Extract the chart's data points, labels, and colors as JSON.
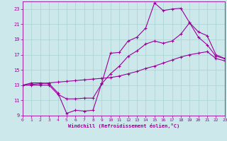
{
  "xlabel": "Windchill (Refroidissement éolien,°C)",
  "bg_color": "#cce8ea",
  "grid_color": "#aad0d4",
  "line_color": "#990099",
  "xlim": [
    0,
    23
  ],
  "ylim": [
    9,
    24
  ],
  "xticks": [
    0,
    1,
    2,
    3,
    4,
    5,
    6,
    7,
    8,
    9,
    10,
    11,
    12,
    13,
    14,
    15,
    16,
    17,
    18,
    19,
    20,
    21,
    22,
    23
  ],
  "yticks": [
    9,
    11,
    13,
    15,
    17,
    19,
    21,
    23
  ],
  "curve1_x": [
    0,
    1,
    2,
    3,
    4,
    5,
    6,
    7,
    8,
    9,
    10,
    11,
    12,
    13,
    14,
    15,
    16,
    17,
    18,
    19,
    20,
    21,
    22,
    23
  ],
  "curve1_y": [
    13.0,
    13.3,
    13.3,
    13.2,
    12.0,
    9.3,
    9.7,
    9.6,
    9.7,
    13.3,
    17.2,
    17.3,
    18.8,
    19.3,
    20.5,
    23.8,
    22.8,
    23.0,
    23.1,
    21.2,
    19.3,
    18.3,
    16.8,
    16.5
  ],
  "curve2_x": [
    0,
    1,
    2,
    3,
    4,
    5,
    6,
    7,
    8,
    9,
    10,
    11,
    12,
    13,
    14,
    15,
    16,
    17,
    18,
    19,
    20,
    21,
    22,
    23
  ],
  "curve2_y": [
    13.0,
    13.0,
    13.0,
    13.0,
    11.8,
    11.2,
    11.2,
    11.3,
    11.3,
    13.2,
    14.5,
    15.5,
    16.8,
    17.5,
    18.4,
    18.8,
    18.5,
    18.8,
    19.7,
    21.2,
    20.0,
    19.5,
    17.0,
    16.5
  ],
  "curve3_x": [
    0,
    1,
    2,
    3,
    4,
    5,
    6,
    7,
    8,
    9,
    10,
    11,
    12,
    13,
    14,
    15,
    16,
    17,
    18,
    19,
    20,
    21,
    22,
    23
  ],
  "curve3_y": [
    13.0,
    13.1,
    13.2,
    13.3,
    13.4,
    13.5,
    13.6,
    13.7,
    13.8,
    13.9,
    14.0,
    14.2,
    14.5,
    14.8,
    15.2,
    15.5,
    15.9,
    16.3,
    16.7,
    17.0,
    17.2,
    17.4,
    16.5,
    16.2
  ]
}
